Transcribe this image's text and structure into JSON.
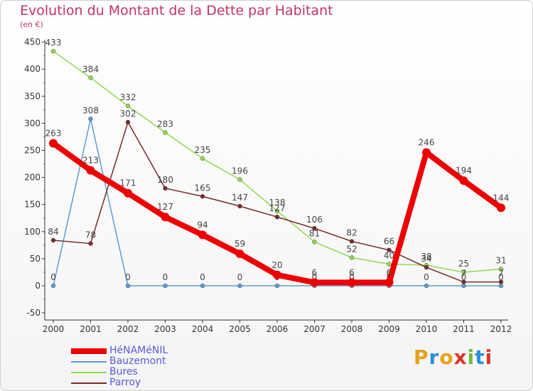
{
  "header": {
    "title": "Evolution du Montant de la Dette par Habitant",
    "unit": "(en €)"
  },
  "brand": {
    "letters": [
      "P",
      "r",
      "o",
      "x",
      "i",
      "t",
      "i"
    ],
    "colors": [
      "#e8a11c",
      "#2a8fd6",
      "#e8a11c",
      "#d9342b",
      "#6cbf3a",
      "#2a8fd6",
      "#d9342b"
    ]
  },
  "chart_data": {
    "type": "line",
    "title": "Evolution du Montant de la Dette par Habitant",
    "subtitle": "(en €)",
    "x": [
      "2000",
      "2001",
      "2002",
      "2003",
      "2004",
      "2005",
      "2006",
      "2007",
      "2008",
      "2009",
      "2010",
      "2011",
      "2012"
    ],
    "ylim": [
      -50,
      450
    ],
    "yticks": [
      -50,
      0,
      50,
      100,
      150,
      200,
      250,
      300,
      350,
      400,
      450
    ],
    "grid": false,
    "legend_position": "bottom-left",
    "series": [
      {
        "name": "HéNAMéNIL",
        "color": "#ee0000",
        "values": [
          263,
          213,
          171,
          127,
          94,
          59,
          20,
          6,
          6,
          6,
          246,
          194,
          144
        ]
      },
      {
        "name": "Bauzemont",
        "color": "#5b9bd5",
        "values": [
          0,
          308,
          0,
          0,
          0,
          0,
          0,
          0,
          0,
          0,
          0,
          0,
          0
        ]
      },
      {
        "name": "Bures",
        "color": "#90d850",
        "values": [
          433,
          384,
          332,
          283,
          235,
          196,
          138,
          81,
          52,
          40,
          38,
          25,
          31
        ]
      },
      {
        "name": "Parroy",
        "color": "#7a2a2a",
        "values": [
          84,
          78,
          302,
          180,
          165,
          147,
          127,
          106,
          82,
          66,
          34,
          7,
          7
        ]
      }
    ]
  }
}
